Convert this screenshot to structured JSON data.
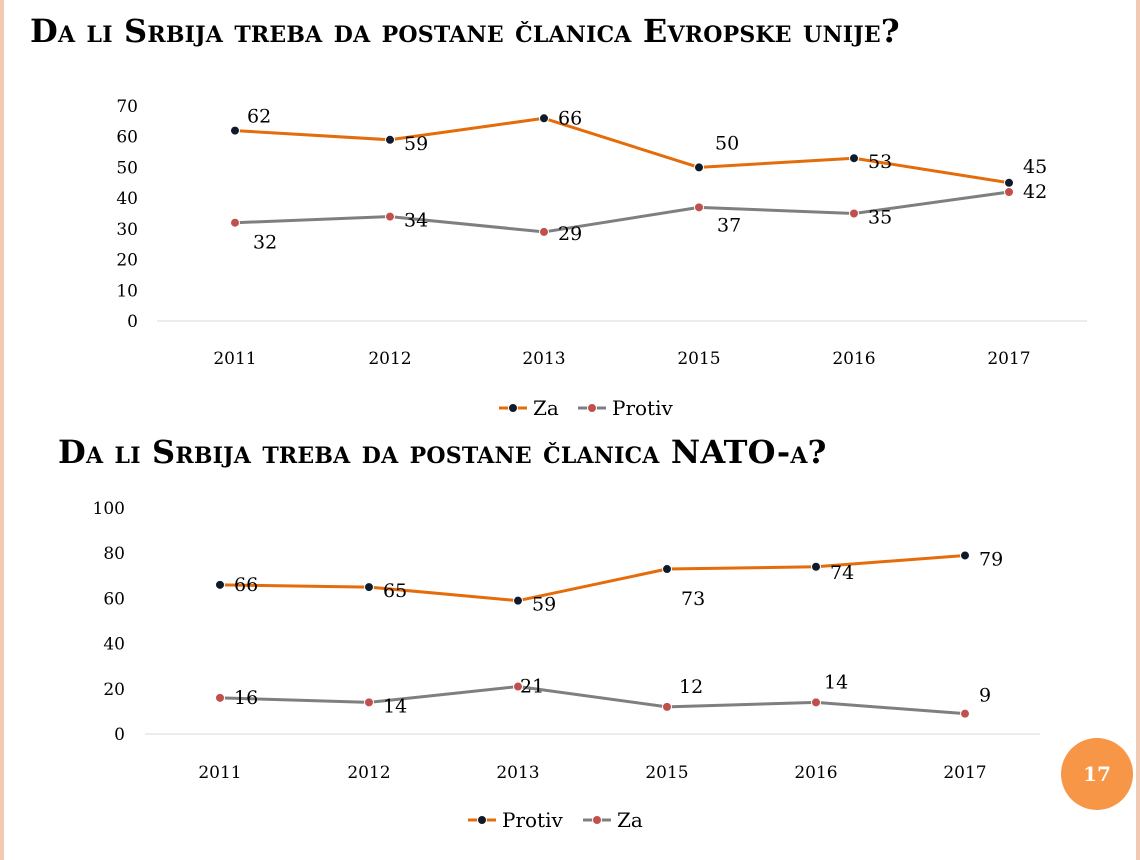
{
  "titles": {
    "eu": "Da li Srbija treba da postane članica Evropske unije?",
    "nato": "Da li Srbija treba da postane članica NATO-a?"
  },
  "page_number": "17",
  "colors": {
    "orange": "#e46c0a",
    "gray": "#7f7f7f",
    "axis": "#d9d9d9",
    "badge": "#f79646"
  },
  "chart_data": [
    {
      "type": "line",
      "title": "Da li Srbija treba da postane članica Evropske unije?",
      "categories": [
        "2011",
        "2012",
        "2013",
        "2015",
        "2016",
        "2017"
      ],
      "ylim": [
        0,
        70
      ],
      "yticks": [
        0,
        10,
        20,
        30,
        40,
        50,
        60,
        70
      ],
      "legend": "bottom",
      "grid": false,
      "series": [
        {
          "name": "Za",
          "color": "#e46c0a",
          "marker": "#0d1b2a",
          "values": [
            62,
            59,
            66,
            50,
            53,
            45
          ]
        },
        {
          "name": "Protiv",
          "color": "#7f7f7f",
          "marker": "#c0504d",
          "values": [
            32,
            34,
            29,
            37,
            35,
            42
          ]
        }
      ]
    },
    {
      "type": "line",
      "title": "Da li Srbija treba da postane članica NATO-a?",
      "categories": [
        "2011",
        "2012",
        "2013",
        "2015",
        "2016",
        "2017"
      ],
      "ylim": [
        0,
        100
      ],
      "yticks": [
        0,
        20,
        40,
        60,
        80,
        100
      ],
      "legend": "bottom",
      "grid": false,
      "series": [
        {
          "name": "Protiv",
          "color": "#e46c0a",
          "marker": "#0d1b2a",
          "values": [
            66,
            65,
            59,
            73,
            74,
            79
          ]
        },
        {
          "name": "Za",
          "color": "#7f7f7f",
          "marker": "#c0504d",
          "values": [
            16,
            14,
            21,
            12,
            14,
            9
          ]
        }
      ]
    }
  ]
}
